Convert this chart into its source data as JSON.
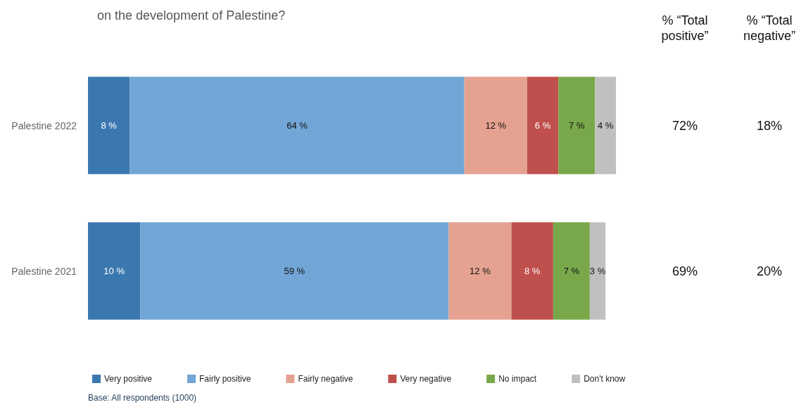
{
  "chart_data": {
    "type": "bar",
    "orientation": "horizontal",
    "stacked": true,
    "title": "on the development of Palestine?",
    "categories": [
      "Palestine 2022",
      "Palestine 2021"
    ],
    "series": [
      {
        "name": "Very positive",
        "color": "#3c78b0",
        "values": [
          8,
          10
        ],
        "value_labels": [
          "8 %",
          "10 %"
        ]
      },
      {
        "name": "Fairly positive",
        "color": "#72a6d6",
        "values": [
          64,
          59
        ],
        "value_labels": [
          "64 %",
          "59 %"
        ]
      },
      {
        "name": "Fairly negative",
        "color": "#e5a290",
        "values": [
          12,
          12
        ],
        "value_labels": [
          "12 %",
          "12 %"
        ]
      },
      {
        "name": "Very negative",
        "color": "#c0504d",
        "values": [
          6,
          8
        ],
        "value_labels": [
          "6 %",
          "8 %"
        ]
      },
      {
        "name": "No impact",
        "color": "#78a84a",
        "values": [
          7,
          7
        ],
        "value_labels": [
          "7 %",
          "7 %"
        ]
      },
      {
        "name": "Don't know",
        "color": "#c0c0c0",
        "values": [
          4,
          3
        ],
        "value_labels": [
          "4 %",
          "3 %"
        ]
      }
    ],
    "legend": "bottom left",
    "annotations": [
      "% “Total\npositive”",
      "% “Total\nnegative”",
      "72%",
      "18%",
      "69%",
      "20%",
      "Base: All respondents (1000)"
    ]
  }
}
